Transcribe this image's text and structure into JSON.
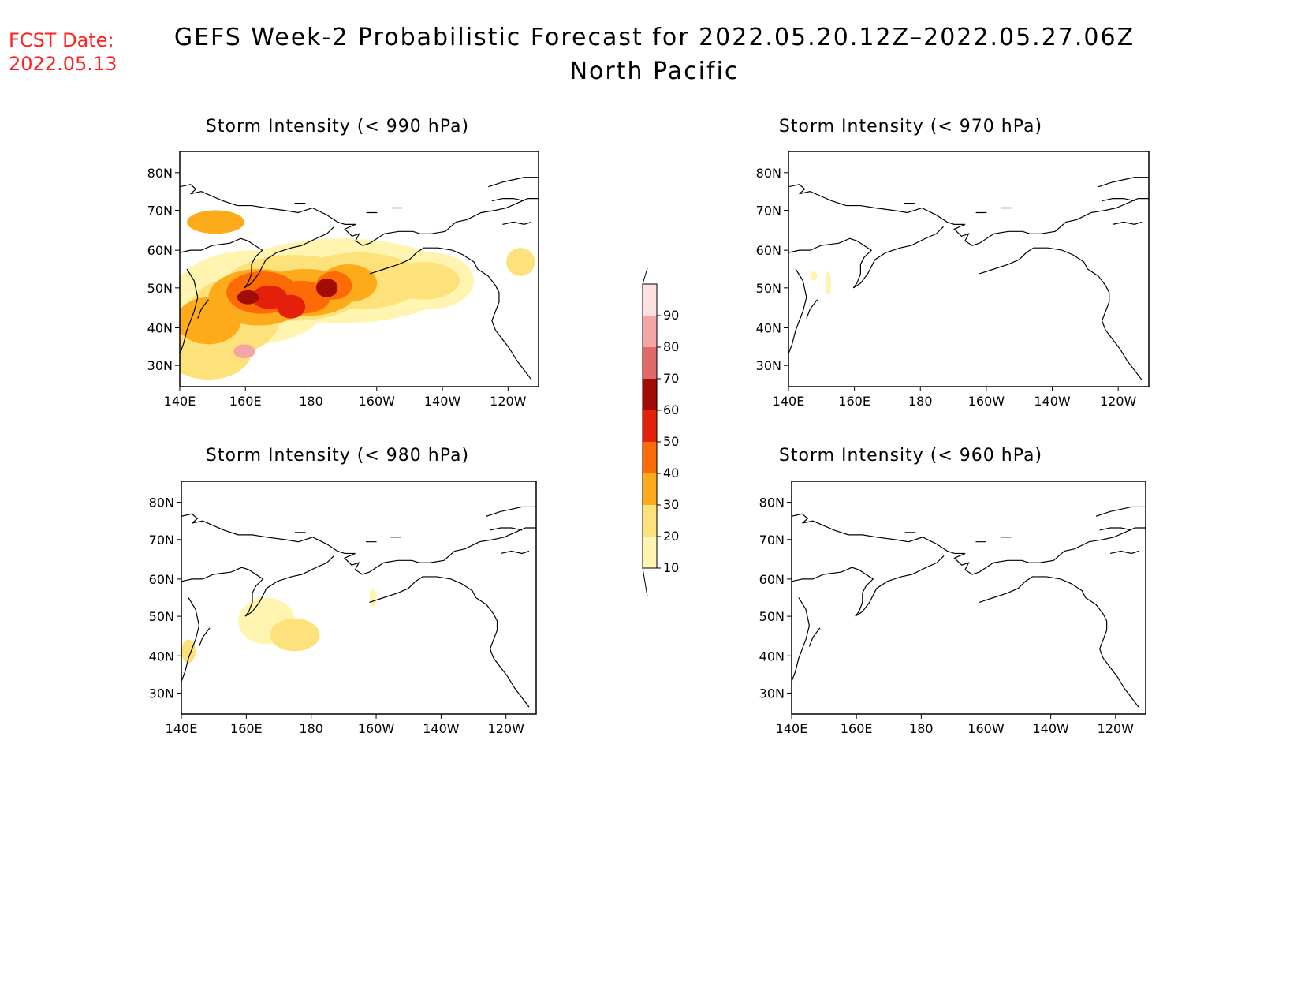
{
  "header": {
    "fcst_label": "FCST Date:",
    "fcst_value": "2022.05.13",
    "title_line1": "GEFS Week-2 Probabilistic Forecast for 2022.05.20.12Z–2022.05.27.06Z",
    "title_line2": "North Pacific"
  },
  "axes": {
    "lat_labels": [
      "80N",
      "70N",
      "60N",
      "50N",
      "40N",
      "30N"
    ],
    "lon_labels": [
      "140E",
      "160E",
      "180",
      "160W",
      "140W",
      "120W"
    ]
  },
  "panels": [
    {
      "id": "p990",
      "title": "Storm Intensity (< 990 hPa)"
    },
    {
      "id": "p970",
      "title": "Storm Intensity (< 970 hPa)"
    },
    {
      "id": "p980",
      "title": "Storm Intensity (< 980 hPa)"
    },
    {
      "id": "p960",
      "title": "Storm Intensity (< 960 hPa)"
    }
  ],
  "colorbar": {
    "levels": [
      "10",
      "20",
      "30",
      "40",
      "50",
      "60",
      "70",
      "80",
      "90"
    ],
    "colors": [
      "#fff5b0",
      "#fde17a",
      "#fdab1a",
      "#fd6b06",
      "#e4200a",
      "#a10c05",
      "#e06a6a",
      "#f4a6a6",
      "#fde0e0"
    ]
  }
}
